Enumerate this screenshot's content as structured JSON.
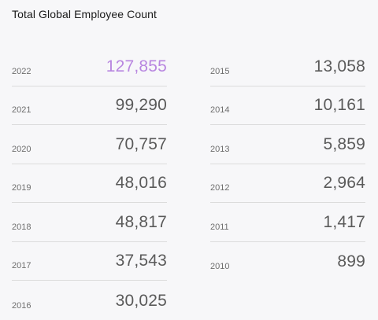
{
  "title": "Total Global Employee Count",
  "colors": {
    "highlight": "#b886e0",
    "value": "#5a5a5a",
    "background": "#f7f7f9"
  },
  "left_column": [
    {
      "year": "2022",
      "count": "127,855",
      "highlight": true
    },
    {
      "year": "2021",
      "count": "99,290"
    },
    {
      "year": "2020",
      "count": "70,757"
    },
    {
      "year": "2019",
      "count": "48,016"
    },
    {
      "year": "2018",
      "count": "48,817"
    },
    {
      "year": "2017",
      "count": "37,543"
    },
    {
      "year": "2016",
      "count": "30,025"
    }
  ],
  "right_column": [
    {
      "year": "2015",
      "count": "13,058"
    },
    {
      "year": "2014",
      "count": "10,161"
    },
    {
      "year": "2013",
      "count": "5,859"
    },
    {
      "year": "2012",
      "count": "2,964"
    },
    {
      "year": "2011",
      "count": "1,417"
    },
    {
      "year": "2010",
      "count": "899"
    }
  ]
}
